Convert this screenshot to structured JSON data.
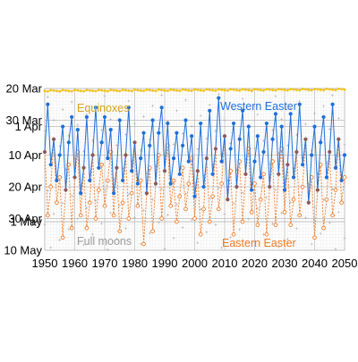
{
  "chart_data": {
    "type": "scatter",
    "title": "",
    "xlabel": "",
    "ylabel": "",
    "x_range": [
      1950,
      2050
    ],
    "x_ticks": [
      "1950",
      "1960",
      "1970",
      "1980",
      "1990",
      "2000",
      "2010",
      "2020",
      "2030",
      "2040",
      "2050"
    ],
    "y_range_days": [
      0,
      51
    ],
    "y_ticks": [
      {
        "label": "20 Mar",
        "day": 0
      },
      {
        "label": "30 Mar",
        "day": 10
      },
      {
        "label": "1 Apr",
        "day": 12
      },
      {
        "label": "10 Apr",
        "day": 21
      },
      {
        "label": "20 Apr",
        "day": 31
      },
      {
        "label": "30 Apr",
        "day": 41
      },
      {
        "label": "1 May",
        "day": 42
      },
      {
        "label": "10 May",
        "day": 51
      }
    ],
    "day_zero_date": "20 Mar",
    "grid": true,
    "annotations": [
      {
        "text": "Equinoxes",
        "color": "#d4a41c"
      },
      {
        "text": "Western Easter",
        "color": "#1e6fd9"
      },
      {
        "text": "Full moons",
        "color": "#9a9a9a"
      },
      {
        "text": "Eastern Easter",
        "color": "#f07a24"
      }
    ],
    "colors": {
      "equinox": "#f0c21a",
      "western": "#1e6fd9",
      "eastern": "#f07a24",
      "coincide": "#8a5a5a",
      "fullmoon": "#b0b0b0",
      "grid": "#d8d8d8"
    },
    "years": [
      1950,
      1951,
      1952,
      1953,
      1954,
      1955,
      1956,
      1957,
      1958,
      1959,
      1960,
      1961,
      1962,
      1963,
      1964,
      1965,
      1966,
      1967,
      1968,
      1969,
      1970,
      1971,
      1972,
      1973,
      1974,
      1975,
      1976,
      1977,
      1978,
      1979,
      1980,
      1981,
      1982,
      1983,
      1984,
      1985,
      1986,
      1987,
      1988,
      1989,
      1990,
      1991,
      1992,
      1993,
      1994,
      1995,
      1996,
      1997,
      1998,
      1999,
      2000,
      2001,
      2002,
      2003,
      2004,
      2005,
      2006,
      2007,
      2008,
      2009,
      2010,
      2011,
      2012,
      2013,
      2014,
      2015,
      2016,
      2017,
      2018,
      2019,
      2020,
      2021,
      2022,
      2023,
      2024,
      2025,
      2026,
      2027,
      2028,
      2029,
      2030,
      2031,
      2032,
      2033,
      2034,
      2035,
      2036,
      2037,
      2038,
      2039,
      2040,
      2041,
      2042,
      2043,
      2044,
      2045,
      2046,
      2047,
      2048,
      2049,
      2050
    ],
    "series": [
      {
        "name": "Western Easter",
        "values": [
          "1950-04-09",
          "1951-03-25",
          "1952-04-13",
          "1953-04-05",
          "1954-04-18",
          "1955-04-10",
          "1956-04-01",
          "1957-04-21",
          "1958-04-06",
          "1959-03-29",
          "1960-04-17",
          "1961-04-02",
          "1962-04-22",
          "1963-04-14",
          "1964-03-29",
          "1965-04-18",
          "1966-04-10",
          "1967-03-26",
          "1968-04-14",
          "1969-04-06",
          "1970-03-29",
          "1971-04-11",
          "1972-04-02",
          "1973-04-22",
          "1974-04-14",
          "1975-03-30",
          "1976-04-18",
          "1977-04-10",
          "1978-03-26",
          "1979-04-15",
          "1980-04-06",
          "1981-04-19",
          "1982-04-11",
          "1983-04-03",
          "1984-04-22",
          "1985-04-07",
          "1986-03-30",
          "1987-04-19",
          "1988-04-03",
          "1989-03-26",
          "1990-04-15",
          "1991-03-31",
          "1992-04-19",
          "1993-04-11",
          "1994-04-03",
          "1995-04-16",
          "1996-04-07",
          "1997-03-30",
          "1998-04-12",
          "1999-04-04",
          "2000-04-23",
          "2001-04-15",
          "2002-03-31",
          "2003-04-20",
          "2004-04-11",
          "2005-03-27",
          "2006-04-16",
          "2007-04-08",
          "2008-03-23",
          "2009-04-12",
          "2010-04-04",
          "2011-04-24",
          "2012-04-08",
          "2013-03-31",
          "2014-04-20",
          "2015-04-05",
          "2016-03-27",
          "2017-04-16",
          "2018-04-01",
          "2019-04-21",
          "2020-04-12",
          "2021-04-04",
          "2022-04-17",
          "2023-04-09",
          "2024-03-31",
          "2025-04-20",
          "2026-04-05",
          "2027-03-28",
          "2028-04-16",
          "2029-04-01",
          "2030-04-21",
          "2031-04-13",
          "2032-03-28",
          "2033-04-17",
          "2034-04-09",
          "2035-03-25",
          "2036-04-13",
          "2037-04-05",
          "2038-04-25",
          "2039-04-10",
          "2040-04-01",
          "2041-04-21",
          "2042-04-06",
          "2043-03-29",
          "2044-04-17",
          "2045-04-09",
          "2046-03-25",
          "2047-04-14",
          "2048-04-05",
          "2049-04-18",
          "2050-04-10"
        ]
      },
      {
        "name": "Eastern Easter",
        "values": [
          "1950-04-09",
          "1951-04-29",
          "1952-04-20",
          "1953-04-05",
          "1954-04-25",
          "1955-04-17",
          "1956-05-06",
          "1957-04-21",
          "1958-04-13",
          "1959-05-03",
          "1960-04-17",
          "1961-04-09",
          "1962-04-29",
          "1963-04-14",
          "1964-05-03",
          "1965-04-25",
          "1966-04-10",
          "1967-04-30",
          "1968-04-21",
          "1969-04-13",
          "1970-04-26",
          "1971-04-18",
          "1972-04-09",
          "1973-04-29",
          "1974-04-14",
          "1975-05-04",
          "1976-04-25",
          "1977-04-10",
          "1978-04-30",
          "1979-04-22",
          "1980-04-06",
          "1981-04-26",
          "1982-04-18",
          "1983-05-08",
          "1984-04-22",
          "1985-04-14",
          "1986-05-04",
          "1987-04-19",
          "1988-04-10",
          "1989-04-30",
          "1990-04-15",
          "1991-04-07",
          "1992-04-26",
          "1993-04-18",
          "1994-05-01",
          "1995-04-23",
          "1996-04-14",
          "1997-04-27",
          "1998-04-19",
          "1999-04-11",
          "2000-04-30",
          "2001-04-15",
          "2002-05-05",
          "2003-04-27",
          "2004-04-11",
          "2005-05-01",
          "2006-04-23",
          "2007-04-08",
          "2008-04-27",
          "2009-04-19",
          "2010-04-04",
          "2011-04-24",
          "2012-04-15",
          "2013-05-05",
          "2014-04-20",
          "2015-04-12",
          "2016-05-01",
          "2017-04-16",
          "2018-04-08",
          "2019-04-28",
          "2020-04-19",
          "2021-05-02",
          "2022-04-24",
          "2023-04-16",
          "2024-05-05",
          "2025-04-20",
          "2026-04-12",
          "2027-05-02",
          "2028-04-16",
          "2029-04-08",
          "2030-04-28",
          "2031-04-13",
          "2032-05-02",
          "2033-04-24",
          "2034-04-09",
          "2035-04-29",
          "2036-04-20",
          "2037-04-05",
          "2038-04-25",
          "2039-04-17",
          "2040-05-06",
          "2041-04-21",
          "2042-04-13",
          "2043-05-03",
          "2044-04-24",
          "2045-04-09",
          "2046-04-29",
          "2047-04-21",
          "2048-04-05",
          "2049-04-25",
          "2050-04-17"
        ]
      }
    ]
  }
}
